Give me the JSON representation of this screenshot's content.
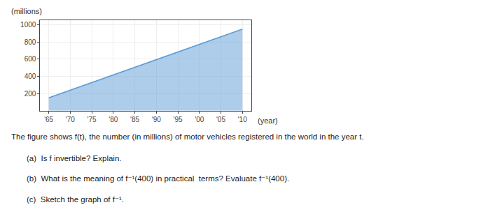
{
  "chart_data": {
    "type": "area",
    "x": [
      1965,
      2010
    ],
    "values": [
      150,
      950
    ],
    "color": "#5b9bd5",
    "xlim": [
      1963,
      2012
    ],
    "ylim": [
      0,
      1050
    ],
    "xticks": [
      {
        "value": 1965,
        "label": "'65"
      },
      {
        "value": 1970,
        "label": "'70"
      },
      {
        "value": 1975,
        "label": "'75"
      },
      {
        "value": 1980,
        "label": "'80"
      },
      {
        "value": 1985,
        "label": "'85"
      },
      {
        "value": 1990,
        "label": "'90"
      },
      {
        "value": 1995,
        "label": "'95"
      },
      {
        "value": 2000,
        "label": "'00"
      },
      {
        "value": 2005,
        "label": "'05"
      },
      {
        "value": 2010,
        "label": "'10"
      }
    ],
    "yticks": [
      200,
      400,
      600,
      800,
      1000
    ],
    "grid": true,
    "ylabel": "(millions)",
    "xlabel": "(year)",
    "annotations": [
      "The figure shows f(t), the number (in millions) of motor vehicles registered in the world in the year t.",
      "(a)  Is f invertible? Explain.",
      "(b)  What is the meaning of f⁻¹(400) in practical  terms? Evaluate f⁻¹(400).",
      "(c)  Sketch the graph of f⁻¹."
    ]
  }
}
